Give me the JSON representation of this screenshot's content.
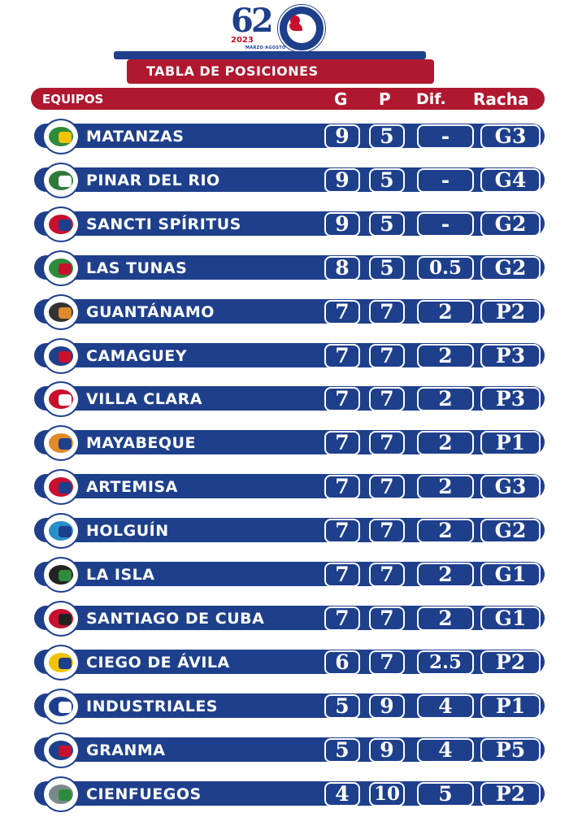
{
  "header": {
    "logo_number": "62",
    "logo_year": "2023",
    "logo_dates": "MARZO·AGOSTO",
    "title": "TABLA DE POSICIONES",
    "col_teams": "EQUIPOS",
    "col_g": "G",
    "col_p": "P",
    "col_dif": "Dif.",
    "col_racha": "Racha"
  },
  "colors": {
    "navy": "#1e3f8c",
    "red": "#b0182f",
    "white": "#ffffff"
  },
  "rows": [
    {
      "team": "MATANZAS",
      "g": "9",
      "p": "5",
      "dif": "-",
      "racha": "G3",
      "emblem": "crocodile-emblem",
      "c1": "#2e8b3a",
      "c2": "#f2c300"
    },
    {
      "team": "PINAR DEL RIO",
      "g": "9",
      "p": "5",
      "dif": "-",
      "racha": "G4",
      "emblem": "pr-emblem",
      "c1": "#2e7a3a",
      "c2": "#ffffff"
    },
    {
      "team": "SANCTI SPÍRITUS",
      "g": "9",
      "p": "5",
      "dif": "-",
      "racha": "G2",
      "emblem": "rooster-emblem",
      "c1": "#c8102e",
      "c2": "#1e3f8c"
    },
    {
      "team": "LAS TUNAS",
      "g": "8",
      "p": "5",
      "dif": "0.5",
      "racha": "G2",
      "emblem": "ball-emblem",
      "c1": "#2e8b3a",
      "c2": "#c8102e"
    },
    {
      "team": "GUANTÁNAMO",
      "g": "7",
      "p": "7",
      "dif": "2",
      "racha": "P2",
      "emblem": "indian-emblem",
      "c1": "#333333",
      "c2": "#e08a2a"
    },
    {
      "team": "CAMAGUEY",
      "g": "7",
      "p": "7",
      "dif": "2",
      "racha": "P3",
      "emblem": "c-emblem",
      "c1": "#1e3f8c",
      "c2": "#c8102e"
    },
    {
      "team": "VILLA CLARA",
      "g": "7",
      "p": "7",
      "dif": "2",
      "racha": "P3",
      "emblem": "vc-emblem",
      "c1": "#c8102e",
      "c2": "#ffffff"
    },
    {
      "team": "MAYABEQUE",
      "g": "7",
      "p": "7",
      "dif": "2",
      "racha": "P1",
      "emblem": "player-emblem",
      "c1": "#e08a2a",
      "c2": "#1e3f8c"
    },
    {
      "team": "ARTEMISA",
      "g": "7",
      "p": "7",
      "dif": "2",
      "racha": "G3",
      "emblem": "a-emblem",
      "c1": "#c8102e",
      "c2": "#1e3f8c"
    },
    {
      "team": "HOLGUÍN",
      "g": "7",
      "p": "7",
      "dif": "2",
      "racha": "G2",
      "emblem": "h-emblem",
      "c1": "#2a8ec8",
      "c2": "#1e3f8c"
    },
    {
      "team": "LA ISLA",
      "g": "7",
      "p": "7",
      "dif": "2",
      "racha": "G1",
      "emblem": "pirate-emblem",
      "c1": "#222222",
      "c2": "#2e8b3a"
    },
    {
      "team": "SANTIAGO DE CUBA",
      "g": "7",
      "p": "7",
      "dif": "2",
      "racha": "G1",
      "emblem": "s-emblem",
      "c1": "#c8102e",
      "c2": "#222222"
    },
    {
      "team": "CIEGO DE ÁVILA",
      "g": "6",
      "p": "7",
      "dif": "2.5",
      "racha": "P2",
      "emblem": "tiger-emblem",
      "c1": "#f2c300",
      "c2": "#1e3f8c"
    },
    {
      "team": "INDUSTRIALES",
      "g": "5",
      "p": "9",
      "dif": "4",
      "racha": "P1",
      "emblem": "i-emblem",
      "c1": "#1e3f8c",
      "c2": "#ffffff"
    },
    {
      "team": "GRANMA",
      "g": "5",
      "p": "9",
      "dif": "4",
      "racha": "P5",
      "emblem": "boat-emblem",
      "c1": "#1e3f8c",
      "c2": "#c8102e"
    },
    {
      "team": "CIENFUEGOS",
      "g": "4",
      "p": "10",
      "dif": "5",
      "racha": "P2",
      "emblem": "elephant-emblem",
      "c1": "#7a8a8a",
      "c2": "#2e8b3a"
    }
  ]
}
